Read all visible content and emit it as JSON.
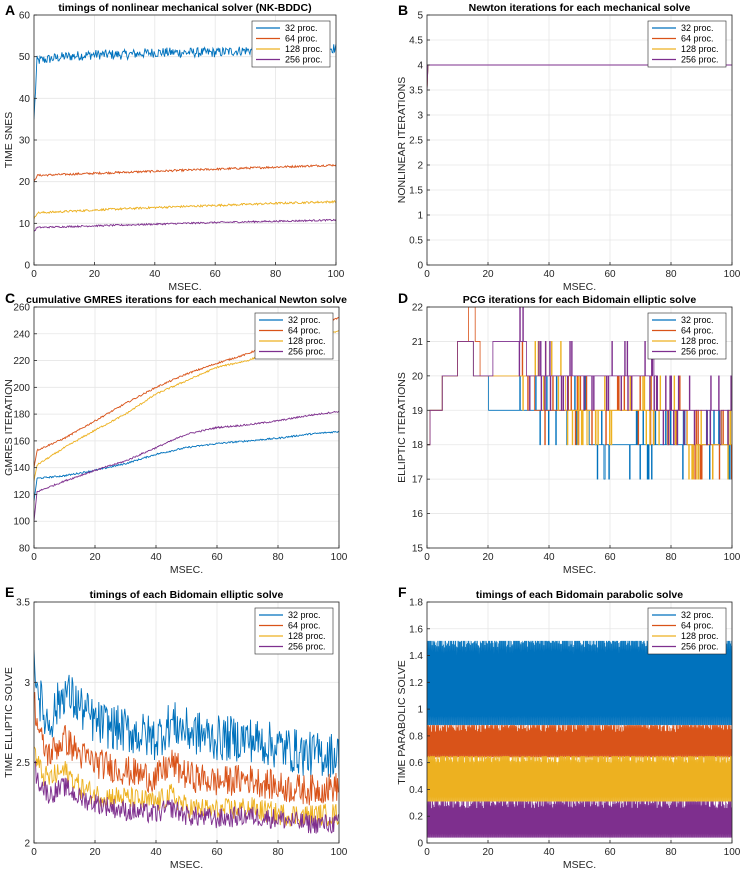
{
  "figure": {
    "series_names": [
      "32 proc.",
      "64 proc.",
      "128 proc.",
      "256 proc."
    ],
    "colors": {
      "32 proc.": "#0072BD",
      "64 proc.": "#D95319",
      "128 proc.": "#EDB120",
      "256 proc.": "#7E2F8E"
    }
  },
  "chart_data": [
    {
      "id": "A",
      "panel_letter": "A",
      "type": "line",
      "title": "timings of nonlinear mechanical solver (NK-BDDC)",
      "xlabel": "MSEC.",
      "ylabel": "TIME SNES",
      "xlim": [
        0,
        100
      ],
      "ylim": [
        0,
        60
      ],
      "xticks": [
        "0",
        "20",
        "40",
        "60",
        "80",
        "100"
      ],
      "yticks": [
        "0",
        "10",
        "20",
        "30",
        "40",
        "50",
        "60"
      ],
      "grid": true,
      "legend": "top-right",
      "series": [
        {
          "name": "32 proc.",
          "color": "#0072BD",
          "x": [
            0,
            1,
            10,
            20,
            30,
            40,
            50,
            60,
            70,
            80,
            90,
            100
          ],
          "values": [
            35,
            49,
            50,
            50.5,
            50.5,
            51,
            51,
            51,
            51.5,
            51.5,
            52,
            52
          ]
        },
        {
          "name": "64 proc.",
          "color": "#D95319",
          "x": [
            0,
            1,
            20,
            40,
            60,
            80,
            100
          ],
          "values": [
            20,
            21.5,
            22,
            22.5,
            23,
            23.5,
            24
          ]
        },
        {
          "name": "128 proc.",
          "color": "#EDB120",
          "x": [
            0,
            1,
            20,
            40,
            60,
            80,
            100
          ],
          "values": [
            11,
            12.5,
            13.2,
            13.8,
            14.3,
            14.8,
            15.2
          ]
        },
        {
          "name": "256 proc.",
          "color": "#7E2F8E",
          "x": [
            0,
            1,
            20,
            40,
            60,
            80,
            100
          ],
          "values": [
            8,
            9,
            9.4,
            9.8,
            10.2,
            10.5,
            10.8
          ]
        }
      ]
    },
    {
      "id": "B",
      "panel_letter": "B",
      "type": "line",
      "title": "Newton iterations for each mechanical solve",
      "xlabel": "MSEC.",
      "ylabel": "NONLINEAR ITERATIONS",
      "xlim": [
        0,
        100
      ],
      "ylim": [
        0,
        5
      ],
      "xticks": [
        "0",
        "20",
        "40",
        "60",
        "80",
        "100"
      ],
      "yticks": [
        "0",
        "0.5",
        "1",
        "1.5",
        "2",
        "2.5",
        "3",
        "3.5",
        "4",
        "4.5",
        "5"
      ],
      "grid": true,
      "legend": "top-right",
      "series": [
        {
          "name": "32 proc.",
          "color": "#0072BD",
          "x": [
            0,
            0.3,
            100
          ],
          "values": [
            3.5,
            4,
            4
          ]
        },
        {
          "name": "64 proc.",
          "color": "#D95319",
          "x": [
            0,
            0.3,
            100
          ],
          "values": [
            3.5,
            4,
            4
          ]
        },
        {
          "name": "128 proc.",
          "color": "#EDB120",
          "x": [
            0,
            0.3,
            100
          ],
          "values": [
            3.5,
            4,
            4
          ]
        },
        {
          "name": "256 proc.",
          "color": "#7E2F8E",
          "x": [
            0,
            0.3,
            100
          ],
          "values": [
            3.5,
            4,
            4
          ]
        }
      ]
    },
    {
      "id": "C",
      "panel_letter": "C",
      "type": "line",
      "title": "cumulative GMRES iterations for each mechanical Newton solve",
      "xlabel": "MSEC.",
      "ylabel": "GMRES ITERATION",
      "xlim": [
        0,
        100
      ],
      "ylim": [
        80,
        260
      ],
      "xticks": [
        "0",
        "20",
        "40",
        "60",
        "80",
        "100"
      ],
      "yticks": [
        "80",
        "100",
        "120",
        "140",
        "160",
        "180",
        "200",
        "220",
        "240",
        "260"
      ],
      "grid": true,
      "legend": "top-right",
      "series": [
        {
          "name": "32 proc.",
          "color": "#0072BD",
          "x": [
            0,
            1,
            10,
            20,
            30,
            40,
            50,
            60,
            70,
            80,
            90,
            100
          ],
          "values": [
            115,
            132,
            134,
            138,
            143,
            150,
            155,
            158,
            160,
            162,
            165,
            167
          ]
        },
        {
          "name": "64 proc.",
          "color": "#D95319",
          "x": [
            0,
            1,
            10,
            20,
            30,
            40,
            50,
            60,
            70,
            80,
            90,
            100
          ],
          "values": [
            140,
            153,
            162,
            175,
            188,
            200,
            210,
            218,
            225,
            235,
            245,
            252
          ]
        },
        {
          "name": "128 proc.",
          "color": "#EDB120",
          "x": [
            0,
            1,
            10,
            20,
            30,
            40,
            50,
            60,
            70,
            80,
            90,
            100
          ],
          "values": [
            130,
            142,
            155,
            168,
            180,
            195,
            205,
            215,
            220,
            228,
            237,
            242
          ]
        },
        {
          "name": "256 proc.",
          "color": "#7E2F8E",
          "x": [
            0,
            1,
            10,
            20,
            30,
            40,
            50,
            60,
            70,
            80,
            90,
            100
          ],
          "values": [
            100,
            122,
            130,
            138,
            145,
            155,
            165,
            170,
            172,
            175,
            179,
            182
          ]
        }
      ]
    },
    {
      "id": "D",
      "panel_letter": "D",
      "type": "line",
      "title": "PCG iterations for each Bidomain elliptic solve",
      "xlabel": "MSEC.",
      "ylabel": "ELLIPTIC ITERATIONS",
      "xlim": [
        0,
        100
      ],
      "ylim": [
        15,
        22
      ],
      "xticks": [
        "0",
        "20",
        "40",
        "60",
        "80",
        "100"
      ],
      "yticks": [
        "15",
        "16",
        "17",
        "18",
        "19",
        "20",
        "21",
        "22"
      ],
      "grid": true,
      "legend": "top-right",
      "series": [
        {
          "name": "32 proc.",
          "color": "#0072BD",
          "x": [
            0,
            2,
            8,
            12,
            18,
            22,
            30,
            40,
            50,
            56,
            60,
            70,
            80,
            90,
            100
          ],
          "values": [
            18,
            19,
            20,
            21,
            20,
            19,
            19,
            19,
            19,
            18,
            18,
            18,
            18,
            18,
            18
          ]
        },
        {
          "name": "64 proc.",
          "color": "#D95319",
          "x": [
            0,
            2,
            8,
            12,
            15,
            18,
            22,
            30,
            40,
            50,
            60,
            70,
            80,
            90,
            100
          ],
          "values": [
            18,
            19,
            20,
            21,
            22,
            20,
            20,
            20,
            19,
            19,
            19,
            19,
            19,
            18,
            18
          ]
        },
        {
          "name": "128 proc.",
          "color": "#EDB120",
          "x": [
            0,
            2,
            8,
            12,
            18,
            22,
            30,
            40,
            50,
            60,
            70,
            80,
            90,
            100
          ],
          "values": [
            18,
            19,
            20,
            21,
            20,
            20,
            20,
            20,
            19,
            19,
            19,
            19,
            18,
            18
          ]
        },
        {
          "name": "256 proc.",
          "color": "#7E2F8E",
          "x": [
            0,
            2,
            8,
            12,
            18,
            25,
            30,
            35,
            50,
            60,
            70,
            80,
            90,
            100
          ],
          "values": [
            18,
            19,
            20,
            21,
            20,
            21,
            21,
            20,
            20,
            20,
            20,
            19,
            19,
            19
          ]
        }
      ]
    },
    {
      "id": "E",
      "panel_letter": "E",
      "type": "line",
      "title": "timings of each Bidomain elliptic solve",
      "xlabel": "MSEC.",
      "ylabel": "TIME ELLIPTIC SOLVE",
      "xlim": [
        0,
        100
      ],
      "ylim": [
        2,
        3.5
      ],
      "xticks": [
        "0",
        "20",
        "40",
        "60",
        "80",
        "100"
      ],
      "yticks": [
        "2",
        "2.5",
        "3",
        "3.5"
      ],
      "grid": true,
      "legend": "top-right",
      "series": [
        {
          "name": "32 proc.",
          "color": "#0072BD",
          "x": [
            0,
            1,
            3,
            5,
            10,
            15,
            20,
            30,
            40,
            45,
            50,
            60,
            70,
            80,
            90,
            100
          ],
          "values": [
            3.2,
            3.0,
            2.8,
            2.75,
            2.95,
            2.85,
            2.75,
            2.7,
            2.65,
            2.75,
            2.7,
            2.65,
            2.65,
            2.6,
            2.55,
            2.55
          ]
        },
        {
          "name": "64 proc.",
          "color": "#D95319",
          "x": [
            0,
            1,
            3,
            5,
            10,
            15,
            20,
            30,
            40,
            45,
            50,
            60,
            70,
            80,
            90,
            100
          ],
          "values": [
            2.9,
            2.75,
            2.6,
            2.55,
            2.65,
            2.55,
            2.5,
            2.45,
            2.4,
            2.5,
            2.42,
            2.38,
            2.4,
            2.35,
            2.33,
            2.35
          ]
        },
        {
          "name": "128 proc.",
          "color": "#EDB120",
          "x": [
            0,
            1,
            3,
            5,
            10,
            15,
            20,
            30,
            40,
            45,
            50,
            60,
            70,
            80,
            90,
            100
          ],
          "values": [
            2.6,
            2.5,
            2.42,
            2.4,
            2.45,
            2.35,
            2.3,
            2.28,
            2.25,
            2.3,
            2.22,
            2.2,
            2.22,
            2.18,
            2.17,
            2.18
          ]
        },
        {
          "name": "256 proc.",
          "color": "#7E2F8E",
          "x": [
            0,
            1,
            3,
            5,
            10,
            15,
            20,
            30,
            40,
            45,
            50,
            60,
            70,
            80,
            90,
            100
          ],
          "values": [
            2.5,
            2.4,
            2.35,
            2.3,
            2.35,
            2.28,
            2.25,
            2.2,
            2.18,
            2.22,
            2.17,
            2.15,
            2.17,
            2.15,
            2.12,
            2.12
          ]
        }
      ]
    },
    {
      "id": "F",
      "panel_letter": "F",
      "type": "line",
      "title": "timings of each Bidomain parabolic solve",
      "xlabel": "MSEC.",
      "ylabel": "TIME PARABOLIC SOLVE",
      "xlim": [
        0,
        100
      ],
      "ylim": [
        0,
        1.8
      ],
      "xticks": [
        "0",
        "20",
        "40",
        "60",
        "80",
        "100"
      ],
      "yticks": [
        "0",
        "0.2",
        "0.4",
        "0.6",
        "0.8",
        "1",
        "1.2",
        "1.4",
        "1.6",
        "1.8"
      ],
      "grid": true,
      "legend": "top-right",
      "series": [
        {
          "name": "32 proc.",
          "color": "#0072BD",
          "x": [
            0,
            100
          ],
          "values_min": [
            0.88,
            0.88
          ],
          "values_max": [
            1.51,
            1.51
          ]
        },
        {
          "name": "64 proc.",
          "color": "#D95319",
          "x": [
            0,
            100
          ],
          "values_min": [
            0.64,
            0.64
          ],
          "values_max": [
            0.88,
            0.88
          ]
        },
        {
          "name": "128 proc.",
          "color": "#EDB120",
          "x": [
            0,
            100
          ],
          "values_min": [
            0.31,
            0.31
          ],
          "values_max": [
            0.65,
            0.65
          ]
        },
        {
          "name": "256 proc.",
          "color": "#7E2F8E",
          "x": [
            0,
            100
          ],
          "values_min": [
            0.04,
            0.04
          ],
          "values_max": [
            0.31,
            0.31
          ]
        }
      ]
    }
  ]
}
